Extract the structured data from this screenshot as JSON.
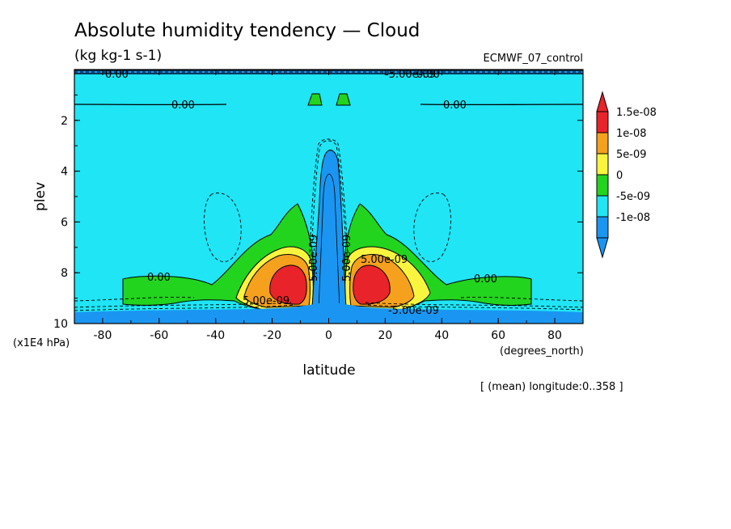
{
  "chart_data": {
    "type": "contour",
    "title": "Absolute humidity tendency — Cloud",
    "units": "(kg kg-1 s-1)",
    "experiment": "ECMWF_07_control",
    "xlabel": "latitude",
    "x_units": "(degrees_north)",
    "ylabel": "plev",
    "y_units": "(x1E4 hPa)",
    "xlim": [
      -90,
      90
    ],
    "ylim": [
      10,
      0
    ],
    "x_ticks": [
      -80,
      -60,
      -40,
      -20,
      0,
      20,
      40,
      60,
      80
    ],
    "y_ticks": [
      2,
      4,
      6,
      8,
      10
    ],
    "mean_note": "[ (mean) longitude:0..358 ]",
    "colorbar": {
      "labels": [
        "1.5e-08",
        "1e-08",
        "5e-09",
        "0",
        "-5e-09",
        "-1e-08"
      ],
      "colors": [
        "#e8242a",
        "#f5a11e",
        "#f9f53e",
        "#22d41e",
        "#1fe5f5",
        "#1a96f2"
      ]
    },
    "contour_labels": [
      "0.00",
      "0.00",
      "0.00",
      "0.00",
      "0.00",
      "0.00",
      "5.00e-09",
      "5.00e-09",
      "5.00e-09",
      "-5.00e-09",
      "-5.00e-09",
      "5.00e-09"
    ],
    "regions": {
      "background": 0,
      "surface_band": -1e-08,
      "equatorial_plume": -1e-08,
      "subtropical_peak_south": {
        "lat": -14,
        "plev": 8.4,
        "value": 1.5e-08
      },
      "subtropical_peak_north": {
        "lat": 14,
        "plev": 8.4,
        "value": 1.5e-08
      }
    }
  }
}
